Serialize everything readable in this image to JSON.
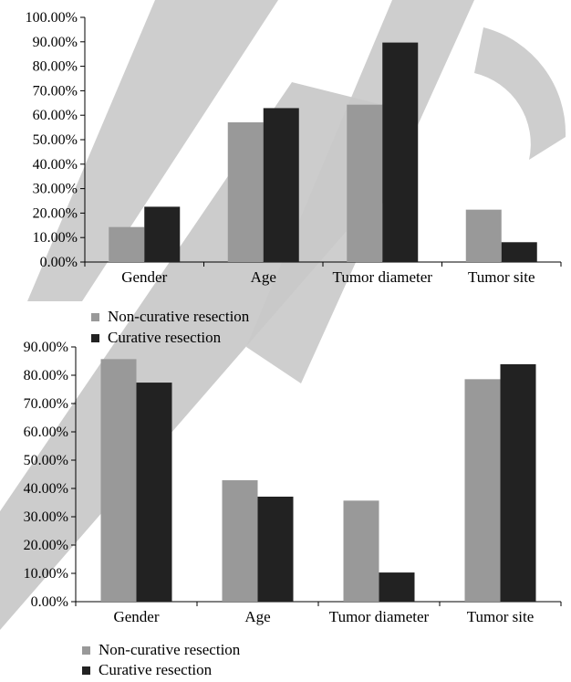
{
  "colors": {
    "non_curative": "#999999",
    "curative": "#222222",
    "axis": "#000000",
    "watermark": "#c9c9c9"
  },
  "chart_data": [
    {
      "type": "bar",
      "categories": [
        "Gender",
        "Age",
        "Tumor diameter",
        "Tumor site"
      ],
      "series": [
        {
          "name": "Non-curative resection",
          "values": [
            14.3,
            57.1,
            64.3,
            21.4
          ]
        },
        {
          "name": "Curative resection",
          "values": [
            22.6,
            62.9,
            89.7,
            8.1
          ]
        }
      ],
      "y_ticks": [
        "0.00%",
        "10.00%",
        "20.00%",
        "30.00%",
        "40.00%",
        "50.00%",
        "60.00%",
        "70.00%",
        "80.00%",
        "90.00%",
        "100.00%"
      ],
      "ylim": [
        0,
        100
      ],
      "legend_placement": "bottom-left",
      "grid": false
    },
    {
      "type": "bar",
      "categories": [
        "Gender",
        "Age",
        "Tumor diameter",
        "Tumor site"
      ],
      "series": [
        {
          "name": "Non-curative resection",
          "values": [
            85.7,
            42.9,
            35.7,
            78.6
          ]
        },
        {
          "name": "Curative resection",
          "values": [
            77.4,
            37.1,
            10.3,
            83.9
          ]
        }
      ],
      "y_ticks": [
        "0.00%",
        "10.00%",
        "20.00%",
        "30.00%",
        "40.00%",
        "50.00%",
        "60.00%",
        "70.00%",
        "80.00%",
        "90.00%"
      ],
      "ylim": [
        0,
        90
      ],
      "legend_placement": "bottom-left",
      "grid": false
    }
  ]
}
